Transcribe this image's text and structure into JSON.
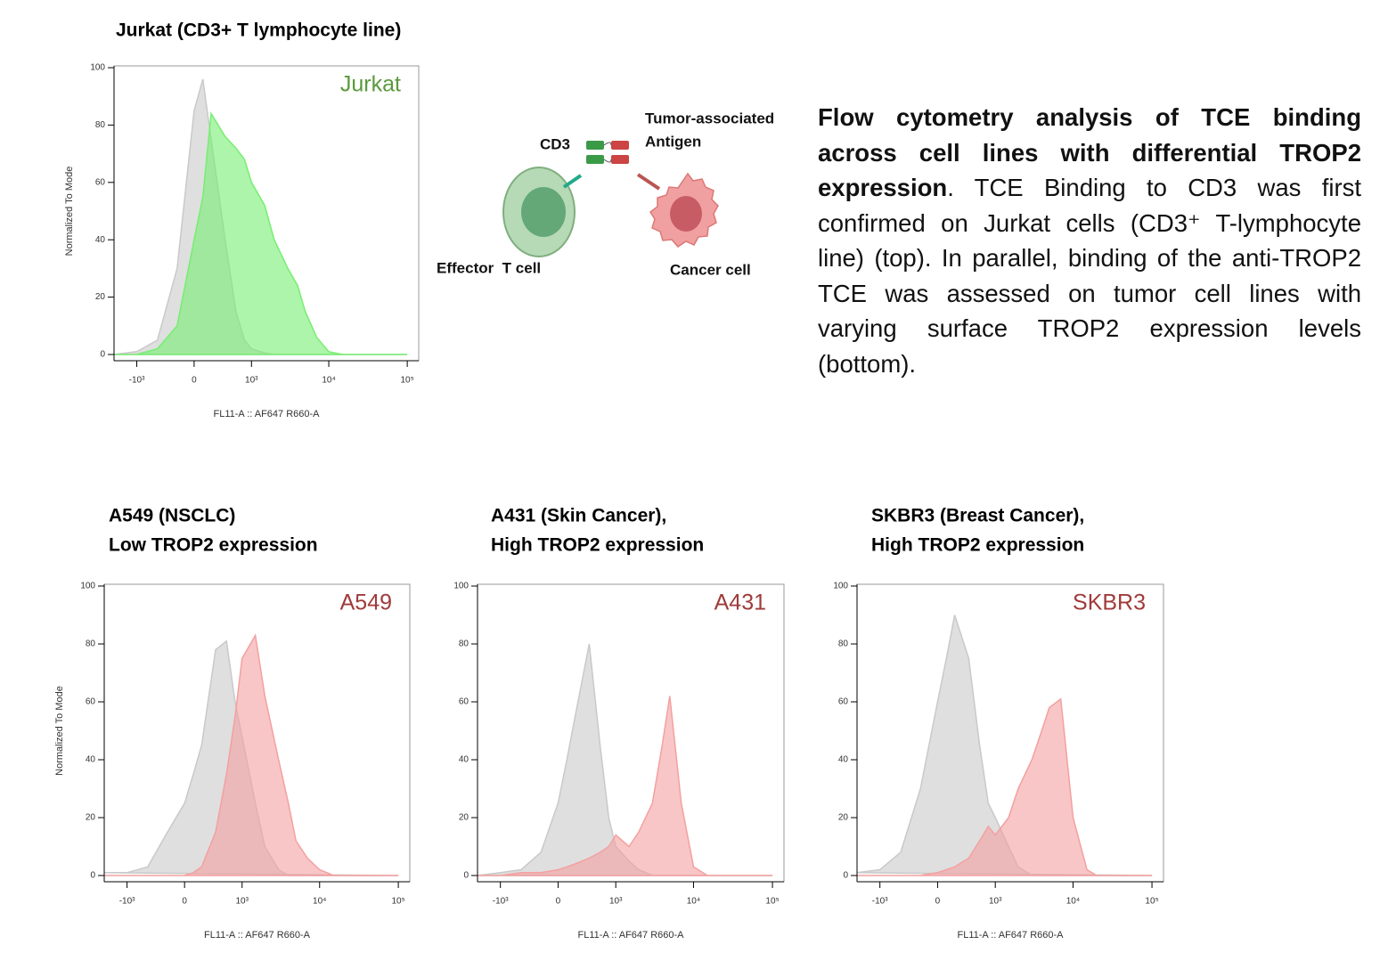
{
  "chart_data": [
    {
      "type": "area",
      "title": [
        "Jurkat (CD3+ T lymphocyte line)"
      ],
      "ylabel": "Normalized To Mode",
      "xlabel": "FL11-A :: AF647 R660-A",
      "x": [
        -2000,
        -1000,
        -500,
        -200,
        0,
        100,
        200,
        400,
        600,
        800,
        1000,
        1500,
        2000,
        3000,
        4000,
        5000,
        7000,
        10000,
        15000,
        20000,
        50000,
        100000
      ],
      "series": [
        {
          "color": "#c9c9c9",
          "values": [
            0,
            1,
            5,
            30,
            85,
            96,
            75,
            40,
            15,
            5,
            2,
            0.5,
            0,
            0,
            0,
            0,
            0,
            0,
            0,
            0,
            0,
            0
          ]
        },
        {
          "name": "Jurkat",
          "color": "#76ee72",
          "label_color": "#5a9a3c",
          "values": [
            0,
            0,
            2,
            10,
            40,
            55,
            84,
            76,
            72,
            68,
            60,
            52,
            40,
            30,
            24,
            15,
            6,
            1,
            0,
            0,
            0,
            0
          ]
        }
      ],
      "xlim": [
        -2000,
        140000
      ],
      "ylim": [
        0,
        100
      ],
      "yticks": [
        0,
        20,
        40,
        60,
        80,
        100
      ],
      "xticks": [
        {
          "value": -1000,
          "label": "-10³"
        },
        0,
        {
          "value": 1000,
          "label": "10³"
        },
        {
          "value": 10000,
          "label": "10⁴"
        },
        {
          "value": 100000,
          "label": "10⁵"
        }
      ],
      "xscale": "logicle"
    },
    {
      "type": "area",
      "title": [
        "A549 (NSCLC)",
        "Low TROP2 expression"
      ],
      "ylabel": "Normalized To Mode",
      "xlabel": "FL11-A :: AF647 R660-A",
      "x": [
        -2000,
        -1000,
        -500,
        -200,
        0,
        100,
        200,
        400,
        600,
        800,
        1000,
        1500,
        2000,
        3000,
        4000,
        5000,
        7000,
        10000,
        15000,
        20000,
        50000,
        100000
      ],
      "series": [
        {
          "color": "#c9c9c9",
          "values": [
            1,
            1,
            3,
            15,
            25,
            35,
            45,
            78,
            81,
            60,
            48,
            25,
            10,
            2,
            0,
            0,
            0,
            0,
            0,
            0,
            0,
            0
          ]
        },
        {
          "name": "A549",
          "color": "#f4a0a0",
          "label_color": "#a03a3a",
          "values": [
            0,
            0,
            0,
            0,
            0,
            1,
            3,
            15,
            35,
            55,
            75,
            83,
            62,
            40,
            25,
            12,
            6,
            2,
            0,
            0,
            0,
            0
          ]
        }
      ],
      "xlim": [
        -2000,
        140000
      ],
      "ylim": [
        0,
        100
      ],
      "yticks": [
        0,
        20,
        40,
        60,
        80,
        100
      ],
      "xticks": [
        {
          "value": -1000,
          "label": "-10³"
        },
        0,
        {
          "value": 1000,
          "label": "10³"
        },
        {
          "value": 10000,
          "label": "10⁴"
        },
        {
          "value": 100000,
          "label": "10⁵"
        }
      ],
      "xscale": "logicle"
    },
    {
      "type": "area",
      "title": [
        "A431 (Skin Cancer),",
        "High TROP2 expression"
      ],
      "xlabel": "FL11-A :: AF647 R660-A",
      "x": [
        -2000,
        -1000,
        -500,
        -200,
        0,
        100,
        200,
        400,
        600,
        800,
        1000,
        1500,
        2000,
        3000,
        4000,
        5000,
        7000,
        10000,
        15000,
        20000,
        50000,
        100000
      ],
      "series": [
        {
          "color": "#c9c9c9",
          "values": [
            0,
            1,
            2,
            8,
            25,
            40,
            55,
            80,
            45,
            20,
            10,
            5,
            2,
            0,
            0,
            0,
            0,
            0,
            0,
            0,
            0,
            0
          ]
        },
        {
          "name": "A431",
          "color": "#f4a0a0",
          "label_color": "#a03a3a",
          "values": [
            0,
            0,
            1,
            1,
            2,
            3,
            4,
            6,
            8,
            10,
            14,
            10,
            15,
            25,
            45,
            62,
            25,
            3,
            0,
            0,
            0,
            0
          ]
        }
      ],
      "xlim": [
        -2000,
        140000
      ],
      "ylim": [
        0,
        100
      ],
      "yticks": [
        0,
        20,
        40,
        60,
        80,
        100
      ],
      "xticks": [
        {
          "value": -1000,
          "label": "-10³"
        },
        0,
        {
          "value": 1000,
          "label": "10³"
        },
        {
          "value": 10000,
          "label": "10⁴"
        },
        {
          "value": 100000,
          "label": "10⁵"
        }
      ],
      "xscale": "logicle"
    },
    {
      "type": "area",
      "title": [
        "SKBR3 (Breast Cancer),",
        "High TROP2 expression"
      ],
      "xlabel": "FL11-A :: AF647 R660-A",
      "x": [
        -2000,
        -1000,
        -500,
        -200,
        0,
        100,
        200,
        400,
        600,
        800,
        1000,
        1500,
        2000,
        3000,
        4000,
        5000,
        7000,
        10000,
        15000,
        20000,
        50000,
        100000
      ],
      "series": [
        {
          "color": "#c9c9c9",
          "values": [
            1,
            2,
            8,
            30,
            60,
            75,
            90,
            75,
            45,
            25,
            20,
            10,
            3,
            0,
            0,
            0,
            0,
            0,
            0,
            0,
            0,
            0
          ]
        },
        {
          "name": "SKBR3",
          "color": "#f4a0a0",
          "label_color": "#a03a3a",
          "values": [
            0,
            0,
            0,
            0,
            1,
            2,
            3,
            6,
            12,
            17,
            14,
            20,
            30,
            40,
            50,
            58,
            61,
            20,
            2,
            0,
            0,
            0
          ]
        }
      ],
      "xlim": [
        -2000,
        140000
      ],
      "ylim": [
        0,
        100
      ],
      "yticks": [
        0,
        20,
        40,
        60,
        80,
        100
      ],
      "xticks": [
        {
          "value": -1000,
          "label": "-10³"
        },
        0,
        {
          "value": 1000,
          "label": "10³"
        },
        {
          "value": 10000,
          "label": "10⁴"
        },
        {
          "value": 100000,
          "label": "10⁵"
        }
      ],
      "xscale": "logicle"
    }
  ],
  "diagram": {
    "cd3": "CD3",
    "antigen": [
      "Tumor-associated",
      "Antigen"
    ],
    "effector": "Effector  T cell",
    "cancer": "Cancer cell"
  },
  "caption": {
    "bold": "Flow cytometry analysis of TCE binding across cell lines with differential TROP2 expression",
    "text": ". TCE Binding to CD3 was first confirmed on Jurkat cells (CD3⁺ T-lymphocyte line) (top). In parallel, binding of the anti-TROP2 TCE was assessed on tumor cell lines with varying surface TROP2 expression levels (bottom)."
  }
}
